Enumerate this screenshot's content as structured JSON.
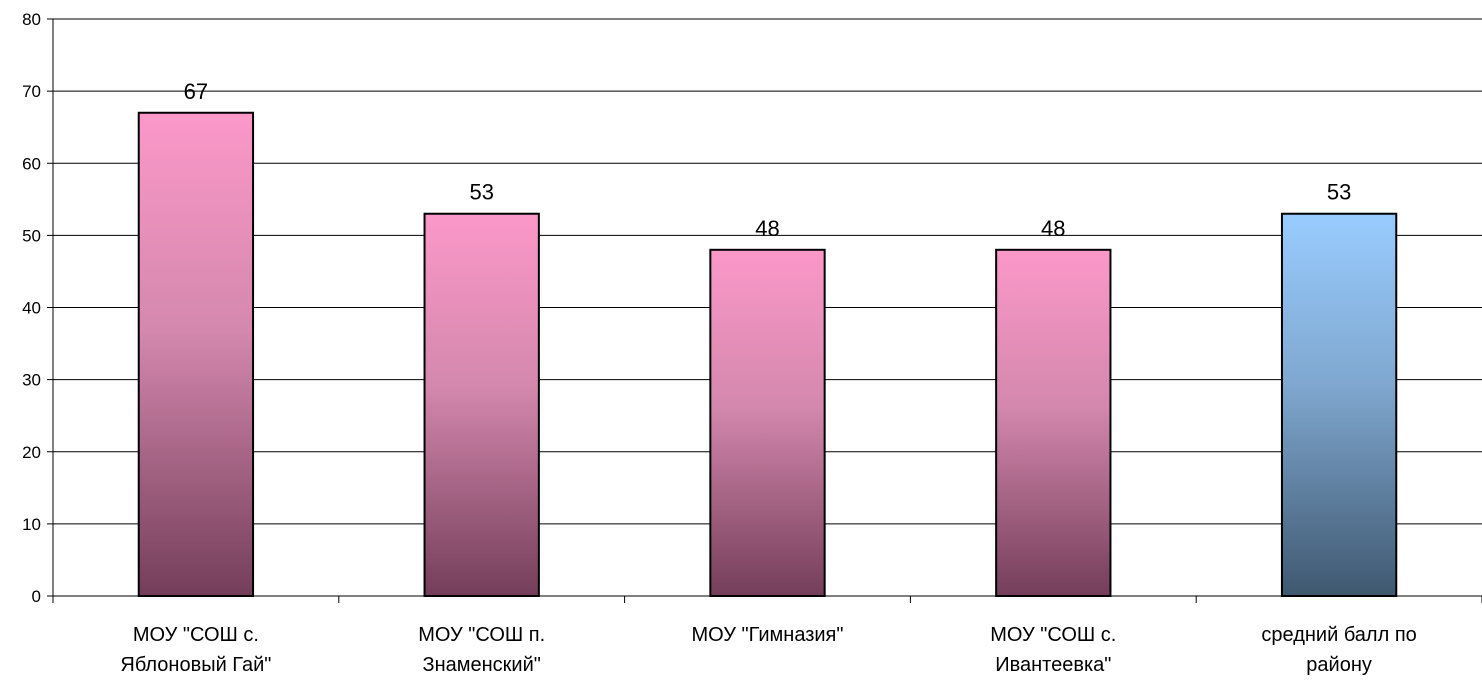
{
  "chart_data": {
    "type": "bar",
    "title": "",
    "xlabel": "",
    "ylabel": "",
    "ylim": [
      0,
      80
    ],
    "yticks": [
      0,
      10,
      20,
      30,
      40,
      50,
      60,
      70,
      80
    ],
    "grid": true,
    "legend": "none",
    "categories": [
      [
        "МОУ \"СОШ с.",
        "Яблоновый Гай\""
      ],
      [
        "МОУ \"СОШ п.",
        "Знаменский\""
      ],
      [
        "МОУ \"Гимназия\""
      ],
      [
        "МОУ \"СОШ с.",
        "Ивантеевка\""
      ],
      [
        "средний балл по",
        "району"
      ]
    ],
    "values": [
      67,
      53,
      48,
      48,
      53
    ],
    "data_labels": [
      "67",
      "53",
      "48",
      "48",
      "53"
    ],
    "bar_styles": [
      "pink",
      "pink",
      "pink",
      "pink",
      "blue"
    ],
    "colors": {
      "pink_top": "#fb98c9",
      "pink_mid": "#d488ad",
      "pink_bottom": "#743e5a",
      "blue_top": "#99ccff",
      "blue_mid": "#7fa7cf",
      "blue_bottom": "#3f5870",
      "grid": "#000000",
      "axis": "#000000"
    }
  }
}
